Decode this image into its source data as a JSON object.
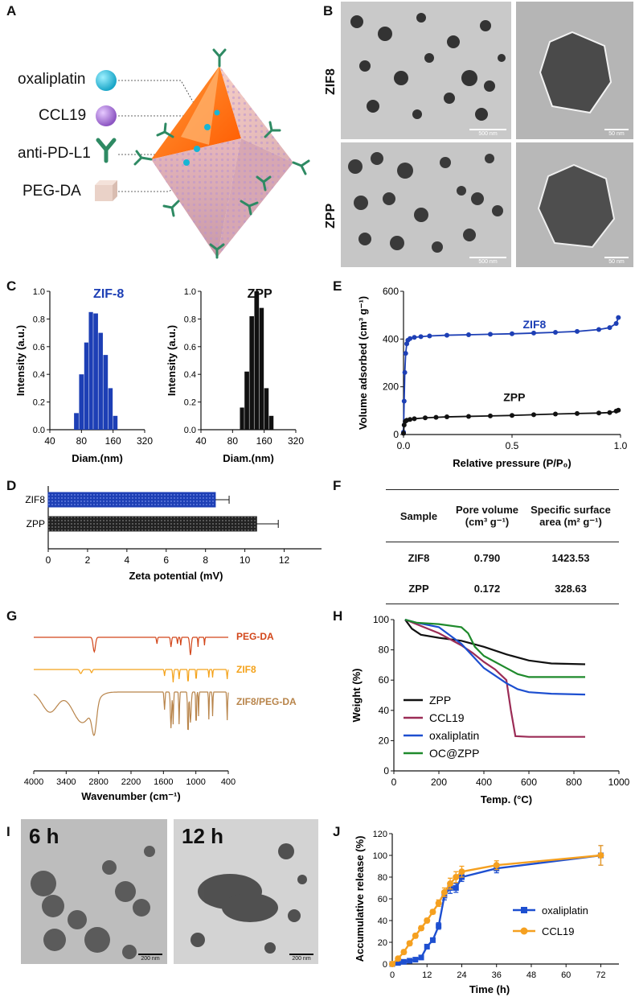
{
  "panels": {
    "A": "A",
    "B": "B",
    "C": "C",
    "D": "D",
    "E": "E",
    "F": "F",
    "G": "G",
    "H": "H",
    "I": "I",
    "J": "J"
  },
  "panelA": {
    "legend": [
      "oxaliplatin",
      "CCL19",
      "anti-PD-L1",
      "PEG-DA"
    ],
    "colors": {
      "oxaliplatin": "#17b5d4",
      "ccl19": "#a36fd0",
      "antibody": "#2e8a63",
      "pegda": "#ead2c8",
      "core": "#ff7a1a"
    }
  },
  "panelB": {
    "rows": [
      "ZIF8",
      "ZPP"
    ],
    "scalebar_large": "500 nm",
    "scalebar_small": "50 nm"
  },
  "panelI": {
    "labels": [
      "6 h",
      "12 h"
    ],
    "scalebar": "200 nm"
  },
  "chart_data": [
    {
      "id": "C-left",
      "type": "bar",
      "title": "ZIF-8",
      "title_color": "#1d3fb5",
      "xlabel": "Diam.(nm)",
      "ylabel": "Intensity (a.u.)",
      "xticks": [
        "40",
        "80",
        "160",
        "320"
      ],
      "yticks": [
        "0.0",
        "0.2",
        "0.4",
        "0.6",
        "0.8",
        "1.0"
      ],
      "ylim": [
        0,
        1.0
      ],
      "xscale": "log",
      "xlim": [
        40,
        320
      ],
      "bins": [
        {
          "x0": 68,
          "x1": 76,
          "v": 0.12
        },
        {
          "x0": 76,
          "x1": 85,
          "v": 0.4
        },
        {
          "x0": 85,
          "x1": 94,
          "v": 0.63
        },
        {
          "x0": 94,
          "x1": 104,
          "v": 0.85
        },
        {
          "x0": 104,
          "x1": 116,
          "v": 0.84
        },
        {
          "x0": 116,
          "x1": 129,
          "v": 0.7
        },
        {
          "x0": 129,
          "x1": 144,
          "v": 0.54
        },
        {
          "x0": 144,
          "x1": 160,
          "v": 0.3
        },
        {
          "x0": 160,
          "x1": 178,
          "v": 0.1
        }
      ],
      "color": "#1d3fb5"
    },
    {
      "id": "C-right",
      "type": "bar",
      "title": "ZPP",
      "title_color": "#111111",
      "xlabel": "Diam.(nm)",
      "ylabel": "Intensity (a.u.)",
      "xticks": [
        "40",
        "80",
        "160",
        "320"
      ],
      "yticks": [
        "0.0",
        "0.2",
        "0.4",
        "0.6",
        "0.8",
        "1.0"
      ],
      "ylim": [
        0,
        1.0
      ],
      "xscale": "log",
      "xlim": [
        40,
        320
      ],
      "bins": [
        {
          "x0": 94,
          "x1": 104,
          "v": 0.16
        },
        {
          "x0": 104,
          "x1": 116,
          "v": 0.42
        },
        {
          "x0": 116,
          "x1": 129,
          "v": 0.82
        },
        {
          "x0": 129,
          "x1": 144,
          "v": 1.0
        },
        {
          "x0": 144,
          "x1": 160,
          "v": 0.88
        },
        {
          "x0": 160,
          "x1": 178,
          "v": 0.3
        },
        {
          "x0": 178,
          "x1": 198,
          "v": 0.1
        }
      ],
      "color": "#111111"
    },
    {
      "id": "E",
      "type": "scatter",
      "xlabel": "Relative pressure (P/P₀)",
      "ylabel": "Volume adsorbed (cm³ g⁻¹)",
      "xticks": [
        "0.0",
        "0.5",
        "1.0"
      ],
      "yticks": [
        "0",
        "200",
        "400",
        "600"
      ],
      "xlim": [
        0,
        1.0
      ],
      "ylim": [
        0,
        600
      ],
      "series": [
        {
          "name": "ZIF8",
          "color": "#1d3fb5",
          "points": [
            [
              0.0,
              10
            ],
            [
              0.003,
              140
            ],
            [
              0.006,
              260
            ],
            [
              0.01,
              340
            ],
            [
              0.015,
              380
            ],
            [
              0.02,
              395
            ],
            [
              0.03,
              402
            ],
            [
              0.05,
              407
            ],
            [
              0.08,
              410
            ],
            [
              0.12,
              413
            ],
            [
              0.2,
              416
            ],
            [
              0.3,
              418
            ],
            [
              0.4,
              420
            ],
            [
              0.5,
              422
            ],
            [
              0.6,
              425
            ],
            [
              0.7,
              428
            ],
            [
              0.8,
              432
            ],
            [
              0.9,
              440
            ],
            [
              0.95,
              448
            ],
            [
              0.98,
              465
            ],
            [
              0.99,
              490
            ]
          ]
        },
        {
          "name": "ZPP",
          "color": "#111111",
          "points": [
            [
              0.0,
              5
            ],
            [
              0.003,
              40
            ],
            [
              0.008,
              55
            ],
            [
              0.015,
              60
            ],
            [
              0.03,
              63
            ],
            [
              0.05,
              66
            ],
            [
              0.1,
              70
            ],
            [
              0.15,
              72
            ],
            [
              0.2,
              74
            ],
            [
              0.3,
              76
            ],
            [
              0.4,
              78
            ],
            [
              0.5,
              80
            ],
            [
              0.6,
              83
            ],
            [
              0.7,
              86
            ],
            [
              0.8,
              88
            ],
            [
              0.9,
              90
            ],
            [
              0.95,
              92
            ],
            [
              0.98,
              98
            ],
            [
              0.99,
              102
            ]
          ]
        }
      ]
    },
    {
      "id": "D",
      "type": "bar",
      "orientation": "horizontal",
      "xlabel": "Zeta potential (mV)",
      "xticks": [
        "0",
        "2",
        "4",
        "6",
        "8",
        "10",
        "12"
      ],
      "xlim": [
        0,
        13
      ],
      "categories": [
        "ZIF8",
        "ZPP"
      ],
      "values": [
        8.5,
        10.6
      ],
      "errors": [
        0.7,
        1.1
      ],
      "colors": [
        "#1d3fb5",
        "#222222"
      ]
    },
    {
      "id": "F",
      "type": "table",
      "headers": [
        "Sample",
        "Pore volume (cm³ g⁻¹)",
        "Specific surface area (m² g⁻¹)"
      ],
      "rows": [
        [
          "ZIF8",
          "0.790",
          "1423.53"
        ],
        [
          "ZPP",
          "0.172",
          "328.63"
        ]
      ]
    },
    {
      "id": "G",
      "type": "line",
      "xlabel": "Wavenumber (cm⁻¹)",
      "xticks": [
        "4000",
        "3400",
        "2800",
        "2200",
        "1600",
        "1000",
        "400"
      ],
      "xlim": [
        4000,
        400
      ],
      "series": [
        {
          "name": "PEG-DA",
          "color": "#d2461a"
        },
        {
          "name": "ZIF8",
          "color": "#f4a21a"
        },
        {
          "name": "ZIF8/PEG-DA",
          "color": "#b8844a"
        }
      ]
    },
    {
      "id": "H",
      "type": "line",
      "xlabel": "Temp. (°C)",
      "ylabel": "Weight (%)",
      "xticks": [
        "0",
        "200",
        "400",
        "600",
        "800",
        "1000"
      ],
      "yticks": [
        "0",
        "20",
        "40",
        "60",
        "80",
        "100"
      ],
      "xlim": [
        0,
        1000
      ],
      "ylim": [
        0,
        100
      ],
      "series": [
        {
          "name": "ZPP",
          "color": "#111111",
          "x": [
            50,
            80,
            120,
            200,
            300,
            400,
            500,
            600,
            700,
            850
          ],
          "y": [
            100,
            94,
            90,
            88,
            86,
            82,
            77,
            73,
            71,
            70.5
          ]
        },
        {
          "name": "CCL19",
          "color": "#9b2c56",
          "x": [
            50,
            100,
            200,
            300,
            350,
            400,
            450,
            500,
            520,
            540,
            600,
            850
          ],
          "y": [
            100,
            97,
            91,
            83,
            78,
            72,
            67,
            60,
            40,
            23,
            22.5,
            22.5
          ]
        },
        {
          "name": "oxaliplatin",
          "color": "#1d4fd0",
          "x": [
            50,
            100,
            200,
            300,
            350,
            400,
            450,
            500,
            550,
            600,
            700,
            850
          ],
          "y": [
            100,
            98,
            95,
            84,
            76,
            68,
            63,
            58,
            54,
            52,
            51,
            50.5
          ]
        },
        {
          "name": "OC@ZPP",
          "color": "#1f8a2c",
          "x": [
            50,
            100,
            200,
            300,
            330,
            360,
            400,
            450,
            500,
            550,
            600,
            850
          ],
          "y": [
            100,
            98,
            97,
            95,
            91,
            82,
            76,
            72,
            68,
            64,
            62,
            62
          ]
        }
      ]
    },
    {
      "id": "J",
      "type": "line",
      "xlabel": "Time (h)",
      "ylabel": "Accumulative release (%)",
      "xticks": [
        "0",
        "12",
        "24",
        "36",
        "48",
        "60",
        "72"
      ],
      "yticks": [
        "0",
        "20",
        "40",
        "60",
        "80",
        "100",
        "120"
      ],
      "xlim": [
        0,
        72
      ],
      "ylim": [
        0,
        120
      ],
      "series": [
        {
          "name": "oxaliplatin",
          "color": "#1d4fd0",
          "marker": "square",
          "x": [
            0,
            2,
            4,
            6,
            8,
            10,
            12,
            14,
            16,
            18,
            20,
            22,
            24,
            36,
            72
          ],
          "y": [
            0,
            1,
            2,
            3,
            4,
            6,
            16,
            22,
            35,
            63,
            70,
            70,
            80,
            88,
            100
          ],
          "err": [
            0,
            1,
            1,
            1,
            1,
            1,
            2,
            2,
            3,
            4,
            5,
            4,
            4,
            4,
            9
          ]
        },
        {
          "name": "CCL19",
          "color": "#f5a020",
          "marker": "circle",
          "x": [
            0,
            2,
            4,
            6,
            8,
            10,
            12,
            14,
            16,
            18,
            20,
            22,
            24,
            36,
            72
          ],
          "y": [
            0,
            5,
            11,
            19,
            26,
            33,
            40,
            48,
            56,
            66,
            74,
            80,
            85,
            91,
            100
          ],
          "err": [
            0,
            1,
            2,
            2,
            2,
            2,
            2,
            2,
            3,
            4,
            5,
            5,
            5,
            4,
            9
          ]
        }
      ]
    }
  ]
}
